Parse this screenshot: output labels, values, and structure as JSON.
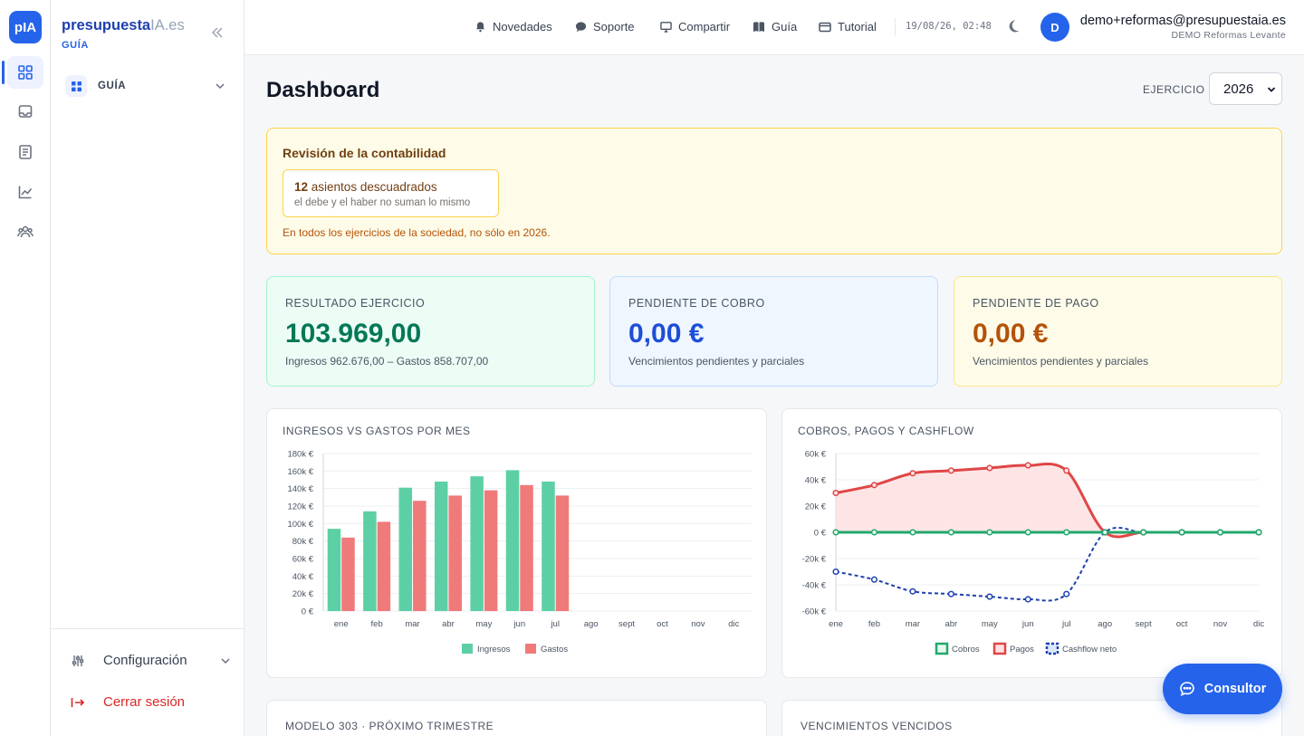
{
  "rail": {
    "logo": "pIA",
    "items": [
      "grid-icon",
      "inbox-icon",
      "document-icon",
      "chart-icon",
      "users-icon"
    ]
  },
  "panel": {
    "brand_main": "presupuesta",
    "brand_ia": "IA.es",
    "brand_sub": "GUÍA",
    "nav_guia": "GUÍA",
    "config": "Configuración",
    "logout": "Cerrar sesión"
  },
  "topbar": {
    "links": [
      "Novedades",
      "Soporte",
      "Compartir",
      "Guía",
      "Tutorial"
    ],
    "datetime": "19/08/26, 02:48",
    "avatar": "D",
    "email": "demo+reformas@presupuestaia.es",
    "org": "DEMO Reformas Levante"
  },
  "page": {
    "title": "Dashboard",
    "ejercicio_label": "EJERCICIO",
    "ejercicio_value": "2026"
  },
  "review": {
    "title": "Revisión de la contabilidad",
    "count": "12",
    "count_text": " asientos descuadrados",
    "detail": "el debe y el haber no suman lo mismo",
    "note": "En todos los ejercicios de la sociedad, no sólo en 2026."
  },
  "kpis": [
    {
      "label": "RESULTADO EJERCICIO",
      "value": "103.969,00",
      "sub": "Ingresos 962.676,00 – Gastos 858.707,00",
      "color": "#047857",
      "bg": "#ecfdf5",
      "border": "#a7f3d0"
    },
    {
      "label": "PENDIENTE DE COBRO",
      "value": "0,00 €",
      "sub": "Vencimientos pendientes y parciales",
      "color": "#1d4ed8",
      "bg": "#eff6ff",
      "border": "#bfdbfe"
    },
    {
      "label": "PENDIENTE DE PAGO",
      "value": "0,00 €",
      "sub": "Vencimientos pendientes y parciales",
      "color": "#b45309",
      "bg": "#fefce8",
      "border": "#fde68a"
    }
  ],
  "cards": {
    "bottom_left": "MODELO 303 · PRÓXIMO TRIMESTRE",
    "bottom_right": "VENCIMIENTOS VENCIDOS"
  },
  "consultor": "Consultor",
  "chart_data": [
    {
      "type": "bar",
      "title": "INGRESOS VS GASTOS POR MES",
      "categories": [
        "ene",
        "feb",
        "mar",
        "abr",
        "may",
        "jun",
        "jul",
        "ago",
        "sept",
        "oct",
        "nov",
        "dic"
      ],
      "ylim": [
        0,
        180000
      ],
      "yticks": [
        "180k €",
        "160k €",
        "140k €",
        "120k €",
        "100k €",
        "80k €",
        "60k €",
        "40k €",
        "20k €",
        "0 €"
      ],
      "series": [
        {
          "name": "Ingresos",
          "color": "#5cd0a4",
          "values": [
            94000,
            114000,
            141000,
            148000,
            154000,
            161000,
            148000,
            null,
            null,
            null,
            null,
            null
          ]
        },
        {
          "name": "Gastos",
          "color": "#f07a7a",
          "values": [
            84000,
            102000,
            126000,
            132000,
            138000,
            144000,
            132000,
            null,
            null,
            null,
            null,
            null
          ]
        }
      ],
      "legend": "bottom"
    },
    {
      "type": "line",
      "title": "COBROS, PAGOS Y CASHFLOW",
      "categories": [
        "ene",
        "feb",
        "mar",
        "abr",
        "may",
        "jun",
        "jul",
        "ago",
        "sept",
        "oct",
        "nov",
        "dic"
      ],
      "ylim": [
        -60000,
        60000
      ],
      "yticks": [
        "60k €",
        "40k €",
        "20k €",
        "0 €",
        "-20k €",
        "-40k €",
        "-60k €"
      ],
      "series": [
        {
          "name": "Cobros",
          "color": "#22a86b",
          "values": [
            0,
            0,
            0,
            0,
            0,
            0,
            0,
            0,
            0,
            0,
            0,
            0
          ]
        },
        {
          "name": "Pagos",
          "color": "#e04646",
          "fill": "#fde2e2",
          "values": [
            30000,
            36000,
            45000,
            47000,
            49000,
            51000,
            47000,
            0,
            0,
            0,
            0,
            0
          ]
        },
        {
          "name": "Cashflow neto",
          "color": "#1e40af",
          "dashed": true,
          "values": [
            -30000,
            -36000,
            -45000,
            -47000,
            -49000,
            -51000,
            -47000,
            0,
            0,
            0,
            0,
            0
          ]
        }
      ],
      "legend": "bottom"
    }
  ]
}
